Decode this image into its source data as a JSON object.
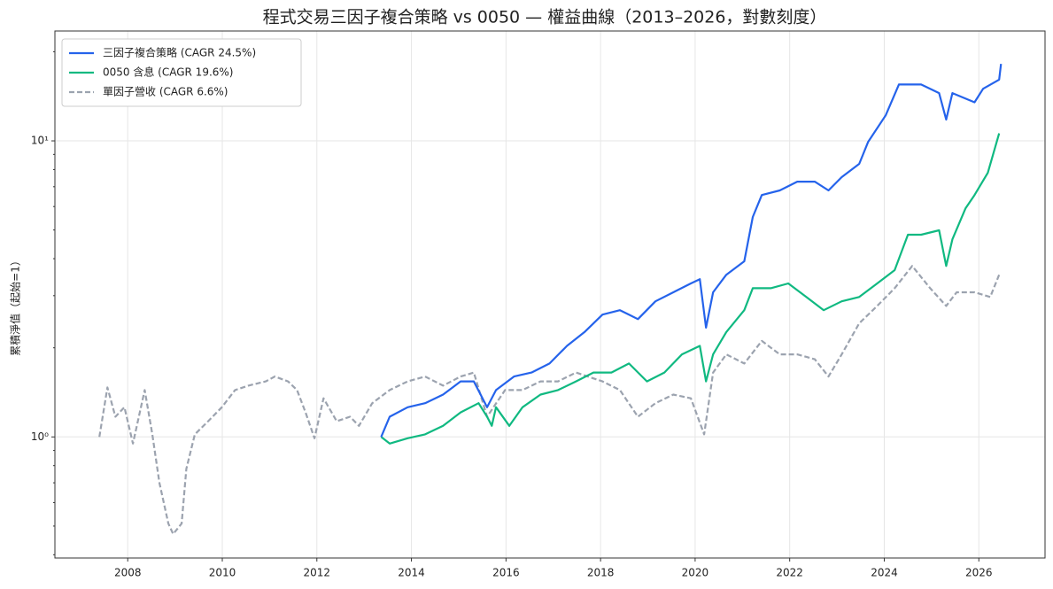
{
  "chart_data": {
    "type": "line",
    "title": "程式交易三因子複合策略 vs 0050 — 權益曲線（2013–2026，對數刻度）",
    "y_label": "累積淨值（起始=1）",
    "yscale": "log",
    "grid": true,
    "legend": "upper left",
    "xlim": [
      2006.46,
      2027.4
    ],
    "xticks": [
      2008,
      2010,
      2012,
      2014,
      2016,
      2018,
      2020,
      2022,
      2024,
      2026
    ],
    "ylim": [
      0.39,
      23.5
    ],
    "yticks": [
      {
        "value": 1,
        "label": "10⁰"
      },
      {
        "value": 10,
        "label": "10¹"
      }
    ],
    "yminor_ticks": [
      0.4,
      0.5,
      0.6,
      0.7,
      0.8,
      0.9,
      2,
      3,
      4,
      5,
      6,
      7,
      8,
      9,
      20
    ],
    "series": [
      {
        "name": "三因子複合策略 (CAGR 24.5%)",
        "color": "#2563eb",
        "dash": "solid",
        "x": [
          2013.36,
          2013.54,
          2013.92,
          2014.29,
          2014.67,
          2015.04,
          2015.32,
          2015.6,
          2015.79,
          2016.17,
          2016.54,
          2016.92,
          2017.29,
          2017.66,
          2018.04,
          2018.41,
          2018.6,
          2018.79,
          2019.16,
          2019.54,
          2019.91,
          2020.1,
          2020.23,
          2020.38,
          2020.66,
          2021.04,
          2021.22,
          2021.41,
          2021.79,
          2022.16,
          2022.53,
          2022.82,
          2023.1,
          2023.47,
          2023.66,
          2024.03,
          2024.31,
          2024.78,
          2025.16,
          2025.31,
          2025.44,
          2025.91,
          2026.09,
          2026.43,
          2026.47
        ],
        "values": [
          1.0,
          1.17,
          1.26,
          1.3,
          1.39,
          1.54,
          1.54,
          1.26,
          1.44,
          1.6,
          1.65,
          1.77,
          2.03,
          2.26,
          2.59,
          2.68,
          2.59,
          2.5,
          2.87,
          3.08,
          3.3,
          3.41,
          2.34,
          3.08,
          3.53,
          3.92,
          5.53,
          6.56,
          6.8,
          7.28,
          7.28,
          6.8,
          7.54,
          8.36,
          9.93,
          12.2,
          15.5,
          15.5,
          14.5,
          11.8,
          14.5,
          13.5,
          15.0,
          16.1,
          18.2
        ]
      },
      {
        "name": "0050 含息 (CAGR 19.6%)",
        "color": "#10b981",
        "dash": "solid",
        "x": [
          2013.36,
          2013.54,
          2013.92,
          2014.29,
          2014.67,
          2015.04,
          2015.42,
          2015.6,
          2015.7,
          2015.79,
          2016.07,
          2016.35,
          2016.73,
          2017.1,
          2017.48,
          2017.85,
          2018.23,
          2018.6,
          2018.98,
          2019.35,
          2019.72,
          2020.1,
          2020.23,
          2020.38,
          2020.66,
          2021.04,
          2021.22,
          2021.6,
          2021.97,
          2022.35,
          2022.72,
          2023.1,
          2023.47,
          2023.85,
          2024.22,
          2024.5,
          2024.78,
          2025.16,
          2025.31,
          2025.44,
          2025.72,
          2025.91,
          2026.19,
          2026.43
        ],
        "values": [
          1.0,
          0.95,
          0.99,
          1.02,
          1.09,
          1.21,
          1.3,
          1.17,
          1.09,
          1.26,
          1.09,
          1.26,
          1.39,
          1.44,
          1.54,
          1.65,
          1.65,
          1.77,
          1.54,
          1.65,
          1.9,
          2.03,
          1.54,
          1.9,
          2.26,
          2.68,
          3.18,
          3.18,
          3.3,
          2.97,
          2.68,
          2.87,
          2.97,
          3.3,
          3.66,
          4.82,
          4.82,
          4.99,
          3.78,
          4.65,
          5.92,
          6.56,
          7.8,
          10.6
        ]
      },
      {
        "name": "單因子營收 (CAGR 6.6%)",
        "color": "#9ca3af",
        "dash": "dashed",
        "x": [
          2007.4,
          2007.57,
          2007.74,
          2007.93,
          2008.11,
          2008.36,
          2008.52,
          2008.67,
          2008.86,
          2008.96,
          2009.14,
          2009.24,
          2009.42,
          2009.7,
          2009.99,
          2010.27,
          2010.55,
          2010.92,
          2011.11,
          2011.39,
          2011.58,
          2011.76,
          2011.95,
          2012.14,
          2012.42,
          2012.7,
          2012.89,
          2013.17,
          2013.54,
          2013.92,
          2014.29,
          2014.67,
          2015.04,
          2015.32,
          2015.6,
          2015.98,
          2016.35,
          2016.73,
          2017.1,
          2017.48,
          2018.04,
          2018.41,
          2018.79,
          2019.16,
          2019.54,
          2019.91,
          2020.19,
          2020.38,
          2020.66,
          2021.04,
          2021.41,
          2021.79,
          2022.16,
          2022.53,
          2022.82,
          2023.1,
          2023.47,
          2023.85,
          2024.22,
          2024.59,
          2024.97,
          2025.31,
          2025.53,
          2025.91,
          2026.24,
          2026.43
        ],
        "values": [
          1.0,
          1.47,
          1.17,
          1.26,
          0.95,
          1.44,
          1.02,
          0.7,
          0.51,
          0.47,
          0.51,
          0.78,
          1.02,
          1.13,
          1.26,
          1.44,
          1.49,
          1.54,
          1.6,
          1.54,
          1.44,
          1.21,
          0.99,
          1.35,
          1.13,
          1.17,
          1.09,
          1.3,
          1.44,
          1.54,
          1.6,
          1.49,
          1.6,
          1.65,
          1.17,
          1.44,
          1.44,
          1.54,
          1.54,
          1.65,
          1.54,
          1.44,
          1.17,
          1.3,
          1.39,
          1.35,
          1.02,
          1.65,
          1.9,
          1.77,
          2.11,
          1.9,
          1.9,
          1.83,
          1.6,
          1.9,
          2.42,
          2.77,
          3.18,
          3.78,
          3.18,
          2.77,
          3.08,
          3.08,
          2.97,
          3.53
        ]
      }
    ]
  }
}
